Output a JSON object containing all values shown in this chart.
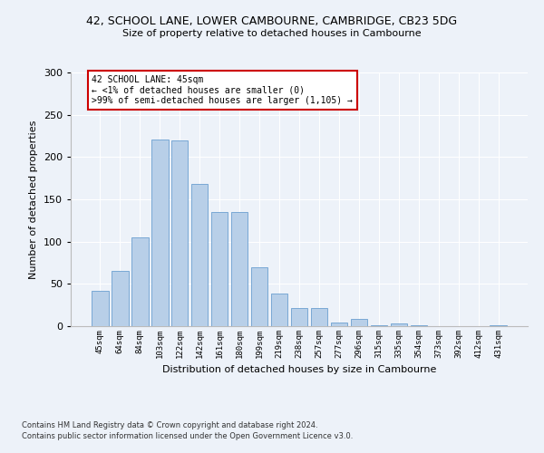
{
  "title1": "42, SCHOOL LANE, LOWER CAMBOURNE, CAMBRIDGE, CB23 5DG",
  "title2": "Size of property relative to detached houses in Cambourne",
  "xlabel": "Distribution of detached houses by size in Cambourne",
  "ylabel": "Number of detached properties",
  "footnote1": "Contains HM Land Registry data © Crown copyright and database right 2024.",
  "footnote2": "Contains public sector information licensed under the Open Government Licence v3.0.",
  "annotation_title": "42 SCHOOL LANE: 45sqm",
  "annotation_line2": "← <1% of detached houses are smaller (0)",
  "annotation_line3": ">99% of semi-detached houses are larger (1,105) →",
  "subject_bar_index": 0,
  "categories": [
    "45sqm",
    "64sqm",
    "84sqm",
    "103sqm",
    "122sqm",
    "142sqm",
    "161sqm",
    "180sqm",
    "199sqm",
    "219sqm",
    "238sqm",
    "257sqm",
    "277sqm",
    "296sqm",
    "315sqm",
    "335sqm",
    "354sqm",
    "373sqm",
    "392sqm",
    "412sqm",
    "431sqm"
  ],
  "values": [
    42,
    65,
    105,
    221,
    220,
    168,
    135,
    135,
    70,
    39,
    21,
    21,
    4,
    9,
    1,
    3,
    1,
    0,
    0,
    0,
    1
  ],
  "bar_color": "#b8cfe8",
  "bar_edge_color": "#6a9fd0",
  "annotation_box_edge_color": "#cc0000",
  "annotation_box_face_color": "#ffffff",
  "background_color": "#edf2f9",
  "grid_color": "#ffffff",
  "ylim": [
    0,
    300
  ],
  "yticks": [
    0,
    50,
    100,
    150,
    200,
    250,
    300
  ]
}
